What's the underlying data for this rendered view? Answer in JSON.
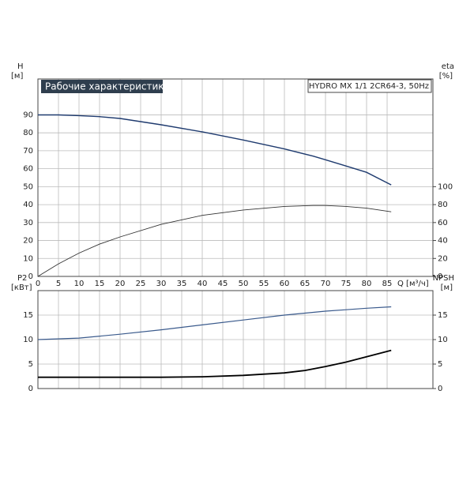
{
  "chart_data": [
    {
      "type": "line",
      "title": "Рабочие характеристики",
      "subtitle": "HYDRO MX 1/1 2CR64-3, 50Hz",
      "ylabel": "H",
      "yunit": "[м]",
      "y2label": "eta",
      "y2unit": "[%]",
      "xlabel": "Q [м³/ч]",
      "x": [
        0,
        5,
        10,
        15,
        20,
        30,
        40,
        50,
        60,
        67,
        70,
        75,
        80,
        86
      ],
      "xlim": [
        0,
        96.15
      ],
      "xticks": [
        0,
        5,
        10,
        15,
        20,
        25,
        30,
        35,
        40,
        45,
        50,
        55,
        60,
        65,
        70,
        75,
        80,
        85
      ],
      "ylim": [
        0,
        110
      ],
      "yticks": [
        0,
        10,
        20,
        30,
        40,
        50,
        60,
        70,
        80,
        90
      ],
      "y2lim": [
        0,
        220
      ],
      "y2ticks": [
        0,
        20,
        40,
        60,
        80,
        100
      ],
      "grid": true,
      "show_xtick_labels": true,
      "series": [
        {
          "color": "#1f3b6f",
          "width": 1.4,
          "values": [
            90,
            90,
            89.6,
            89,
            88,
            84.5,
            80.5,
            76,
            71,
            67,
            65,
            61.5,
            58,
            51
          ]
        },
        {
          "color": "#333333",
          "width": 0.9,
          "axis": "y2",
          "values": [
            0,
            14,
            26,
            36,
            44,
            58,
            68,
            74,
            78,
            79,
            79,
            78,
            76,
            72
          ]
        }
      ]
    },
    {
      "type": "line",
      "ylabel": "P2",
      "yunit": "[кВт]",
      "y2label": "NPSH",
      "y2unit": "[м]",
      "x": [
        0,
        10,
        20,
        30,
        40,
        50,
        60,
        65,
        70,
        75,
        80,
        86
      ],
      "xlim": [
        0,
        96.15
      ],
      "xticks": [
        0,
        5,
        10,
        15,
        20,
        25,
        30,
        35,
        40,
        45,
        50,
        55,
        60,
        65,
        70,
        75,
        80,
        85
      ],
      "ylim": [
        0,
        20
      ],
      "yticks": [
        0,
        5,
        10,
        15
      ],
      "y2lim": [
        0,
        20
      ],
      "y2ticks": [
        0,
        5,
        10,
        15
      ],
      "grid": true,
      "show_xtick_labels": false,
      "series": [
        {
          "color": "#3a5a8c",
          "width": 1.2,
          "values": [
            10,
            10.3,
            11.1,
            12,
            13,
            14,
            15,
            15.4,
            15.8,
            16.1,
            16.4,
            16.7
          ]
        },
        {
          "color": "#000000",
          "width": 1.8,
          "axis": "y2",
          "values": [
            2.3,
            2.3,
            2.3,
            2.3,
            2.4,
            2.7,
            3.2,
            3.7,
            4.5,
            5.4,
            6.5,
            7.8
          ]
        }
      ]
    }
  ]
}
